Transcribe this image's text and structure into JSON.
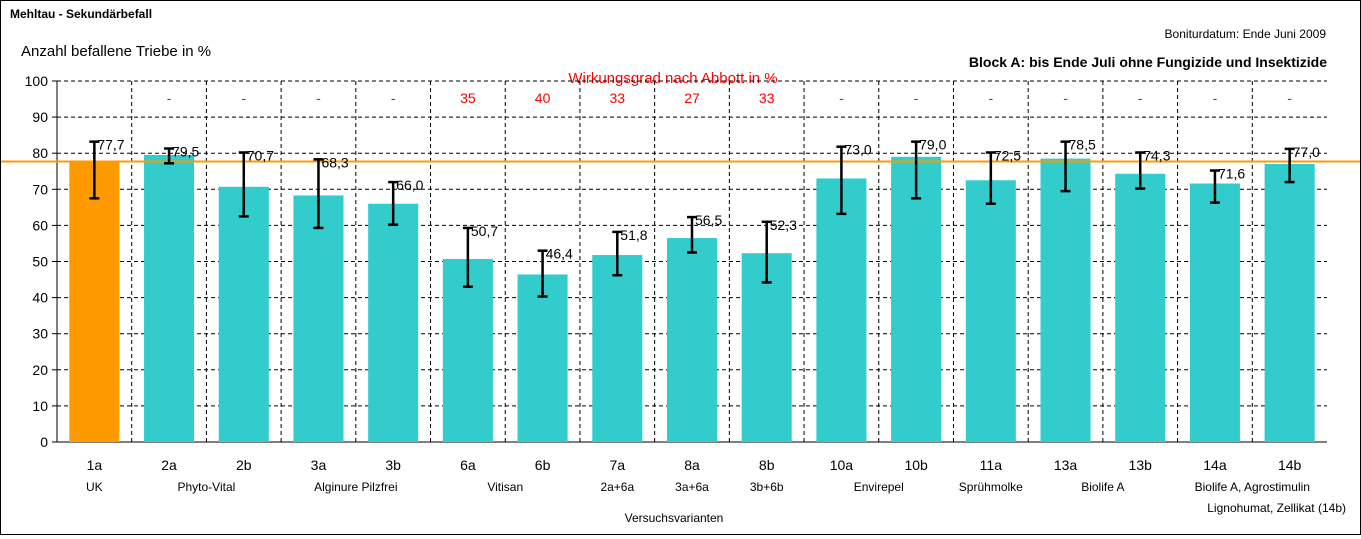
{
  "chart_data": {
    "type": "bar",
    "title": "Mehltau - Sekundärbefall",
    "date_note": "Boniturdatum: Ende Juni 2009",
    "block_note": "Block A: bis Ende Juli ohne Fungizide und Insektizide",
    "ylabel": "Anzahl befallene Triebe in %",
    "xlabel": "Versuchsvarianten",
    "efficacy_label": "Wirkungsgrad nach Abbott in %",
    "ylim": [
      0,
      100
    ],
    "yticks": [
      0,
      10,
      20,
      30,
      40,
      50,
      60,
      70,
      80,
      90,
      100
    ],
    "grid": true,
    "reference_line": 77.7,
    "categories": [
      "1a",
      "2a",
      "2b",
      "3a",
      "3b",
      "6a",
      "6b",
      "7a",
      "8a",
      "8b",
      "10a",
      "10b",
      "11a",
      "13a",
      "13b",
      "14a",
      "14b"
    ],
    "values": [
      77.7,
      79.5,
      70.7,
      68.3,
      66.0,
      50.7,
      46.4,
      51.8,
      56.5,
      52.3,
      73.0,
      79.0,
      72.5,
      78.5,
      74.3,
      71.6,
      77.0
    ],
    "value_labels": [
      "77,7",
      "79,5",
      "70,7",
      "68,3",
      "66,0",
      "50,7",
      "46,4",
      "51,8",
      "56,5",
      "52,3",
      "73,0",
      "79,0",
      "72,5",
      "78,5",
      "74,3",
      "71,6",
      "77,0"
    ],
    "error_low": [
      67.5,
      77.2,
      62.5,
      59.3,
      60.2,
      43.0,
      40.3,
      46.2,
      52.5,
      44.2,
      63.2,
      67.5,
      66.0,
      69.5,
      70.2,
      66.3,
      72.0
    ],
    "error_high": [
      83.2,
      81.3,
      80.2,
      78.3,
      72.0,
      59.3,
      53.0,
      58.2,
      62.3,
      61.0,
      81.8,
      83.2,
      80.2,
      83.2,
      80.2,
      75.2,
      81.2
    ],
    "efficacy": [
      "",
      "-",
      "-",
      "-",
      "-",
      "35",
      "40",
      "33",
      "27",
      "33",
      "-",
      "-",
      "-",
      "-",
      "-",
      "-",
      "-"
    ],
    "group_labels": [
      {
        "text": "UK",
        "from": 0,
        "to": 0
      },
      {
        "text": "Phyto-Vital",
        "from": 1,
        "to": 2
      },
      {
        "text": "Alginure Pilzfrei",
        "from": 3,
        "to": 4
      },
      {
        "text": "Vitisan",
        "from": 5,
        "to": 6
      },
      {
        "text": "2a+6a",
        "from": 7,
        "to": 7
      },
      {
        "text": "3a+6a",
        "from": 8,
        "to": 8
      },
      {
        "text": "3b+6b",
        "from": 9,
        "to": 9
      },
      {
        "text": "Envirepel",
        "from": 10,
        "to": 11
      },
      {
        "text": "Sprühmolke",
        "from": 12,
        "to": 12
      },
      {
        "text": "Biolife A",
        "from": 13,
        "to": 14
      },
      {
        "text": "Biolife A, Agrostimulin",
        "from": 15,
        "to": 16
      }
    ],
    "extra_note": "Lignohumat, Zellikat (14b)",
    "colors": {
      "control": "#FF9900",
      "bar": "#33CCCC",
      "reference_line": "#FF9900",
      "efficacy_text": "#FF0000",
      "error_bar": "#000000",
      "grid": "#000000"
    }
  }
}
